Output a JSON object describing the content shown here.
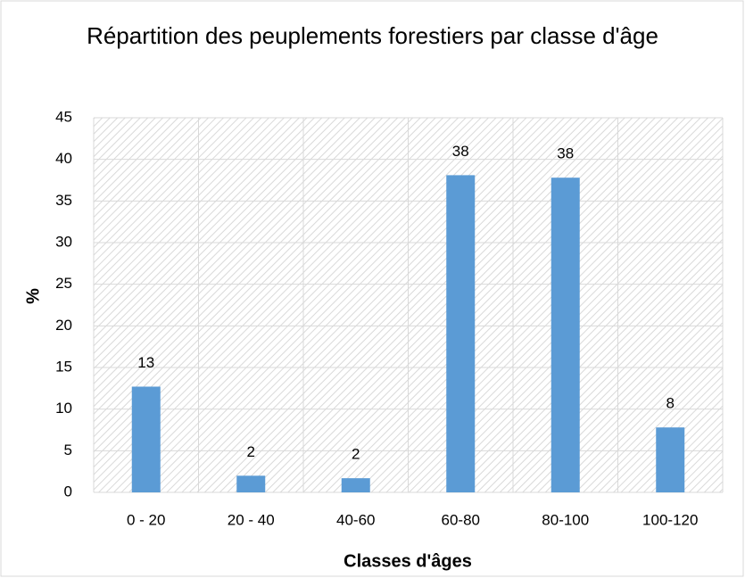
{
  "chart_data": {
    "type": "bar",
    "title": "Répartition des peuplements forestiers par classe d'âge",
    "xlabel": "Classes d'âges",
    "ylabel": "%",
    "categories": [
      "0 - 20",
      "20 - 40",
      "40-60",
      "60-80",
      "80-100",
      "100-120"
    ],
    "values": [
      12.7,
      2,
      1.7,
      38.1,
      37.8,
      7.8
    ],
    "value_labels": [
      "13",
      "2",
      "2",
      "38",
      "38",
      "8"
    ],
    "color": "#5b9bd5",
    "ylim": [
      0,
      45
    ],
    "yticks": [
      0,
      5,
      10,
      15,
      20,
      25,
      30,
      35,
      40,
      45
    ],
    "grid": true
  }
}
